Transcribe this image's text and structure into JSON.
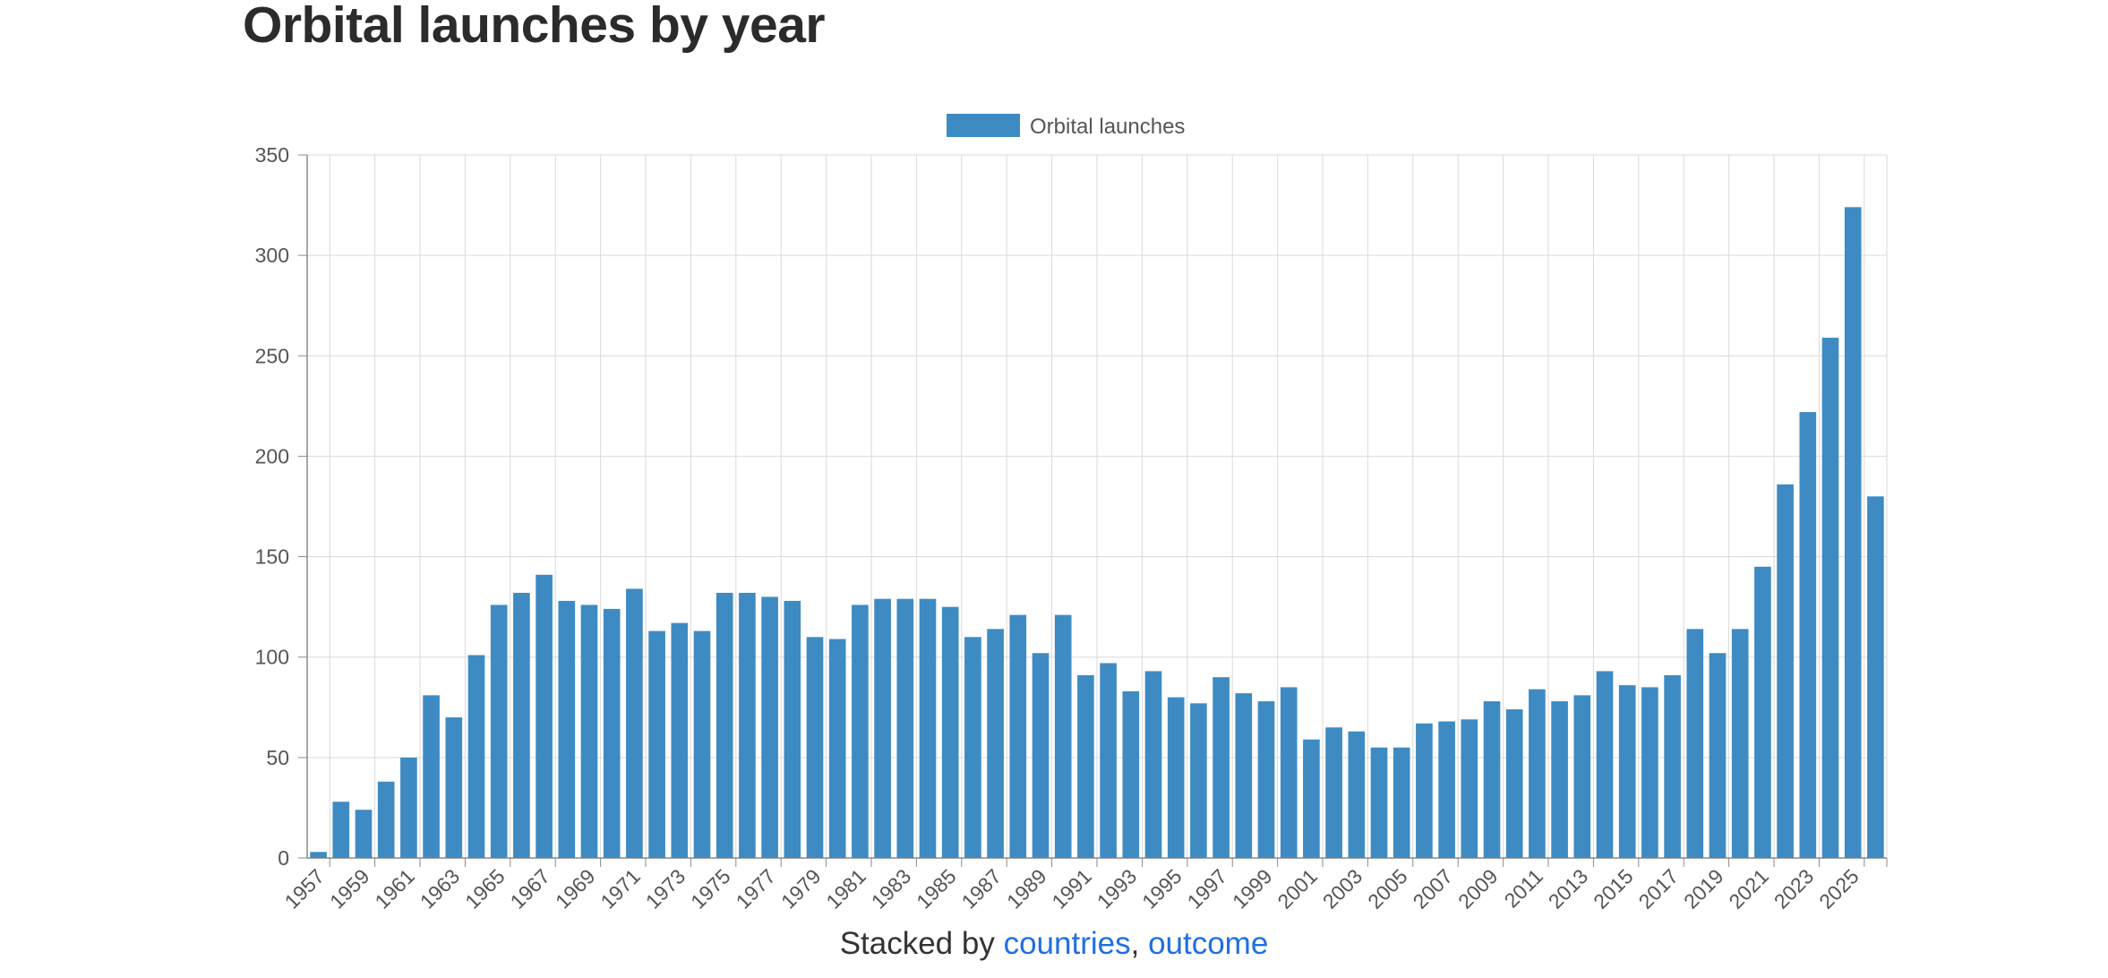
{
  "page": {
    "title": "Orbital launches by year",
    "footer_prefix": "Stacked by ",
    "footer_link_countries": "countries",
    "footer_separator": ", ",
    "footer_link_outcome": "outcome"
  },
  "colors": {
    "bar": "#3e8bc3",
    "grid": "#dadada",
    "axis": "#8a8a8a",
    "tick_text": "#555555",
    "link": "#1f6fe0"
  },
  "chart_data": {
    "type": "bar",
    "title": "",
    "xlabel": "",
    "ylabel": "",
    "ylim": [
      0,
      350
    ],
    "yticks": [
      0,
      50,
      100,
      150,
      200,
      250,
      300,
      350
    ],
    "grid": true,
    "legend_position": "top-center",
    "categories": [
      "1957",
      "1958",
      "1959",
      "1960",
      "1961",
      "1962",
      "1963",
      "1964",
      "1965",
      "1966",
      "1967",
      "1968",
      "1969",
      "1970",
      "1971",
      "1972",
      "1973",
      "1974",
      "1975",
      "1976",
      "1977",
      "1978",
      "1979",
      "1980",
      "1981",
      "1982",
      "1983",
      "1984",
      "1985",
      "1986",
      "1987",
      "1988",
      "1989",
      "1990",
      "1991",
      "1992",
      "1993",
      "1994",
      "1995",
      "1996",
      "1997",
      "1998",
      "1999",
      "2000",
      "2001",
      "2002",
      "2003",
      "2004",
      "2005",
      "2006",
      "2007",
      "2008",
      "2009",
      "2010",
      "2011",
      "2012",
      "2013",
      "2014",
      "2015",
      "2016",
      "2017",
      "2018",
      "2019",
      "2020",
      "2021",
      "2022",
      "2023",
      "2024",
      "2025",
      "2026"
    ],
    "x_tick_labels": [
      "1957",
      "1959",
      "1961",
      "1963",
      "1965",
      "1967",
      "1969",
      "1971",
      "1973",
      "1975",
      "1977",
      "1979",
      "1981",
      "1983",
      "1985",
      "1987",
      "1989",
      "1991",
      "1993",
      "1995",
      "1997",
      "1999",
      "2001",
      "2003",
      "2005",
      "2007",
      "2009",
      "2011",
      "2013",
      "2015",
      "2017",
      "2019",
      "2021",
      "2023",
      "2025"
    ],
    "series": [
      {
        "name": "Orbital launches",
        "values": [
          3,
          28,
          24,
          38,
          50,
          81,
          70,
          101,
          126,
          132,
          141,
          128,
          126,
          124,
          134,
          113,
          117,
          113,
          132,
          132,
          130,
          128,
          110,
          109,
          126,
          129,
          129,
          129,
          125,
          110,
          114,
          121,
          102,
          121,
          91,
          97,
          83,
          93,
          80,
          77,
          90,
          82,
          78,
          85,
          59,
          65,
          63,
          55,
          55,
          67,
          68,
          69,
          78,
          74,
          84,
          78,
          81,
          93,
          86,
          85,
          91,
          114,
          102,
          114,
          145,
          186,
          222,
          259,
          324,
          180
        ]
      }
    ]
  }
}
